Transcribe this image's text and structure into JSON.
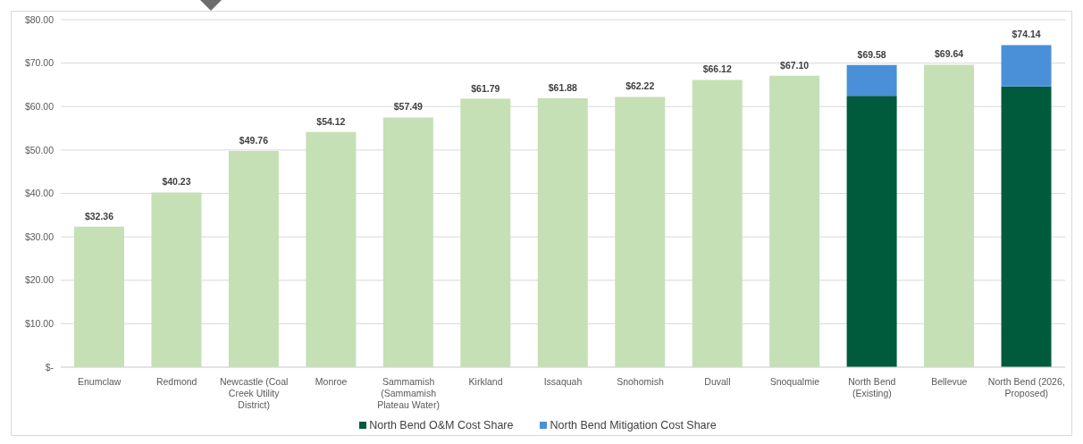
{
  "chart_data": {
    "type": "bar",
    "stacked": true,
    "categories": [
      "Enumclaw",
      "Redmond",
      "Newcastle (Coal Creek Utility District)",
      "Monroe",
      "Sammamish (Sammamish Plateau Water)",
      "Kirkland",
      "Issaquah",
      "Snohomish",
      "Duvall",
      "Snoqualmie",
      "North Bend (Existing)",
      "Bellevue",
      "North Bend (2026, Proposed)"
    ],
    "series": [
      {
        "color": "#c5e0b4",
        "values": [
          32.36,
          40.23,
          49.76,
          54.12,
          57.49,
          61.79,
          61.88,
          62.22,
          66.12,
          67.1,
          null,
          69.64,
          null
        ],
        "value_labels": [
          "$32.36",
          "$40.23",
          "$49.76",
          "$54.12",
          "$57.49",
          "$61.79",
          "$61.88",
          "$62.22",
          "$66.12",
          "$67.10",
          null,
          "$69.64",
          null
        ]
      },
      {
        "name": "North Bend O&M Cost Share",
        "color": "#005a3c",
        "values": [
          null,
          null,
          null,
          null,
          null,
          null,
          null,
          null,
          null,
          null,
          62.48,
          null,
          64.64
        ]
      },
      {
        "name": "North Bend Mitigation Cost Share",
        "color": "#4a90d9",
        "values": [
          null,
          null,
          null,
          null,
          null,
          null,
          null,
          null,
          null,
          null,
          7.1,
          null,
          9.5
        ]
      }
    ],
    "totals": [
      null,
      null,
      null,
      null,
      null,
      null,
      null,
      null,
      null,
      null,
      "$69.58",
      null,
      "$74.14"
    ],
    "ylim": [
      0,
      80
    ],
    "yticks": [
      {
        "value": 0,
        "label": "$-"
      },
      {
        "value": 10,
        "label": "$10.00"
      },
      {
        "value": 20,
        "label": "$20.00"
      },
      {
        "value": 30,
        "label": "$30.00"
      },
      {
        "value": 40,
        "label": "$40.00"
      },
      {
        "value": 50,
        "label": "$50.00"
      },
      {
        "value": 60,
        "label": "$60.00"
      },
      {
        "value": 70,
        "label": "$70.00"
      },
      {
        "value": 80,
        "label": "$80.00"
      }
    ],
    "grid": "y",
    "legend": "bottom"
  }
}
